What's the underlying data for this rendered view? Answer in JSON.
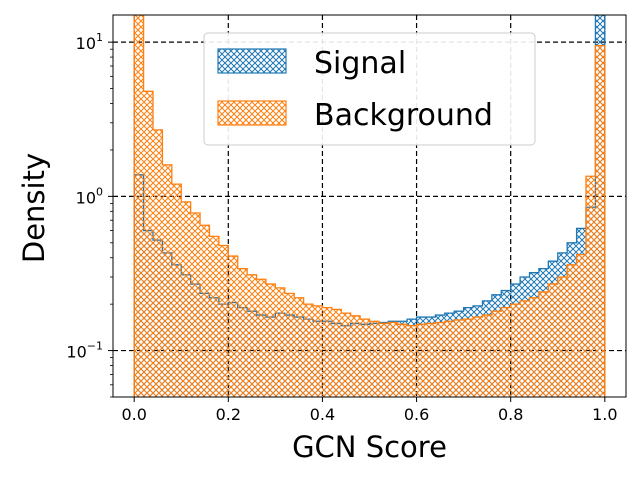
{
  "chart_data": {
    "type": "histogram",
    "xlabel": "GCN Score",
    "ylabel": "Density",
    "xlim": [
      -0.045,
      1.045
    ],
    "ylim": [
      0.05,
      15
    ],
    "yscale": "log",
    "grid": true,
    "legend_position": "top-center",
    "x_ticks": [
      "0.0",
      "0.2",
      "0.4",
      "0.6",
      "0.8",
      "1.0"
    ],
    "y_ticks": [
      {
        "base": "10",
        "exp": "−1"
      },
      {
        "base": "10",
        "exp": "0"
      },
      {
        "base": "10",
        "exp": "1"
      }
    ],
    "bin_edges_range": [
      0,
      1
    ],
    "bins": 50,
    "series": [
      {
        "name": "Signal",
        "color": "#1f77b4",
        "hatch": "xxxx",
        "values": [
          1.38,
          0.6,
          0.52,
          0.43,
          0.36,
          0.31,
          0.27,
          0.235,
          0.22,
          0.2,
          0.205,
          0.19,
          0.18,
          0.17,
          0.165,
          0.175,
          0.17,
          0.165,
          0.16,
          0.155,
          0.155,
          0.15,
          0.145,
          0.15,
          0.148,
          0.15,
          0.152,
          0.155,
          0.155,
          0.16,
          0.165,
          0.165,
          0.17,
          0.175,
          0.18,
          0.19,
          0.195,
          0.21,
          0.23,
          0.245,
          0.27,
          0.3,
          0.32,
          0.34,
          0.38,
          0.43,
          0.5,
          0.62,
          0.85,
          15
        ]
      },
      {
        "name": "Background",
        "color": "#ff7f0e",
        "hatch": "xxxx",
        "values": [
          15,
          4.8,
          2.7,
          1.6,
          1.2,
          0.92,
          0.78,
          0.65,
          0.55,
          0.48,
          0.41,
          0.34,
          0.31,
          0.29,
          0.27,
          0.255,
          0.235,
          0.22,
          0.2,
          0.195,
          0.19,
          0.185,
          0.175,
          0.168,
          0.16,
          0.155,
          0.15,
          0.152,
          0.148,
          0.145,
          0.148,
          0.15,
          0.152,
          0.155,
          0.158,
          0.16,
          0.165,
          0.17,
          0.18,
          0.19,
          0.2,
          0.21,
          0.22,
          0.24,
          0.27,
          0.3,
          0.36,
          0.42,
          1.35,
          9.5
        ]
      }
    ]
  }
}
